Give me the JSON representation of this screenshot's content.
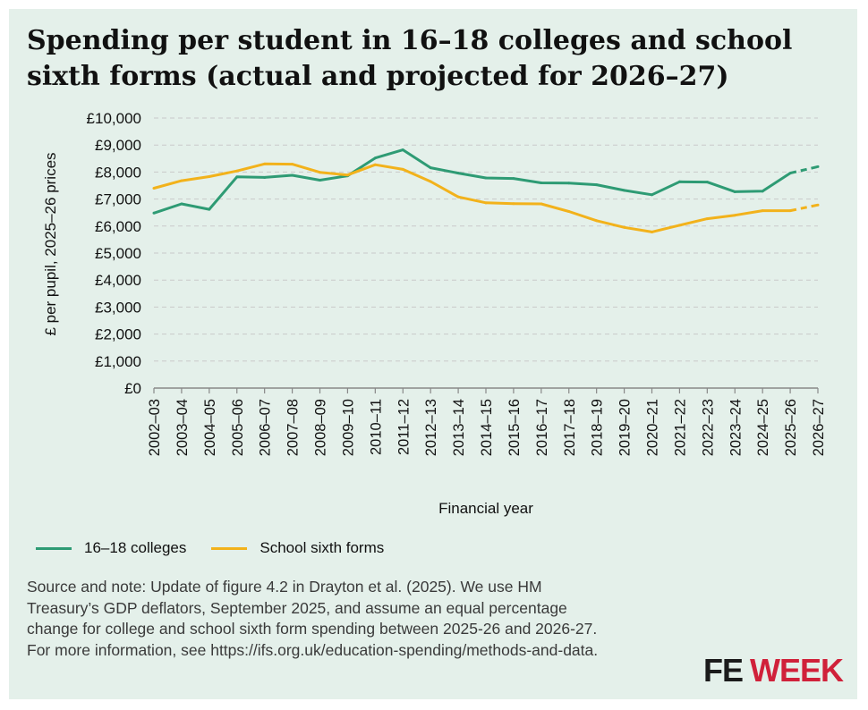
{
  "title": "Spending per student in 16–18 colleges and school sixth forms (actual and projected for 2026–27)",
  "chart_data": {
    "type": "line",
    "title": "Spending per student in 16–18 colleges and school sixth forms (actual and projected for 2026–27)",
    "xlabel": "Financial year",
    "ylabel": "£ per pupil, 2025–26 prices",
    "ylim": [
      0,
      10000
    ],
    "yticks": [
      0,
      1000,
      2000,
      3000,
      4000,
      5000,
      6000,
      7000,
      8000,
      9000,
      10000
    ],
    "ytick_labels": [
      "£0",
      "£1,000",
      "£2,000",
      "£3,000",
      "£4,000",
      "£5,000",
      "£6,000",
      "£7,000",
      "£8,000",
      "£9,000",
      "£10,000"
    ],
    "grid": true,
    "legend_position": "bottom-left",
    "categories": [
      "2002–03",
      "2003–04",
      "2004–05",
      "2005–06",
      "2006–07",
      "2007–08",
      "2008–09",
      "2009–10",
      "2010–11",
      "2011–12",
      "2012–13",
      "2013–14",
      "2014–15",
      "2015–16",
      "2016–17",
      "2017–18",
      "2018–19",
      "2019–20",
      "2020–21",
      "2021–22",
      "2022–23",
      "2023–24",
      "2024–25",
      "2025–26",
      "2026–27"
    ],
    "projected_from_index": 23,
    "series": [
      {
        "name": "16–18 colleges",
        "color": "#2e9b74",
        "values": [
          6480,
          6820,
          6620,
          7820,
          7800,
          7880,
          7700,
          7860,
          8520,
          8820,
          8160,
          7960,
          7780,
          7760,
          7600,
          7590,
          7530,
          7320,
          7160,
          7640,
          7630,
          7270,
          7290,
          7960,
          8200
        ]
      },
      {
        "name": "School sixth forms",
        "color": "#f2b21b",
        "values": [
          7400,
          7680,
          7830,
          8040,
          8300,
          8290,
          7990,
          7890,
          8270,
          8100,
          7650,
          7080,
          6860,
          6830,
          6820,
          6540,
          6200,
          5950,
          5780,
          6030,
          6270,
          6400,
          6570,
          6570,
          6780
        ]
      }
    ]
  },
  "source_note": "Source and note: Update of figure 4.2 in Drayton et al. (2025). We use HM Treasury’s GDP deflators, September 2025, and assume an equal percentage change for college and school sixth form spending between 2025-26 and 2026-27. For more information, see https://ifs.org.uk/education-spending/methods-and-data.",
  "logo": {
    "part1": "FE",
    "part2": "WEEK"
  },
  "colors": {
    "background": "#e4f0ea",
    "grid": "#c9c9c9",
    "axis": "#888888",
    "brand_red": "#d0213a"
  }
}
